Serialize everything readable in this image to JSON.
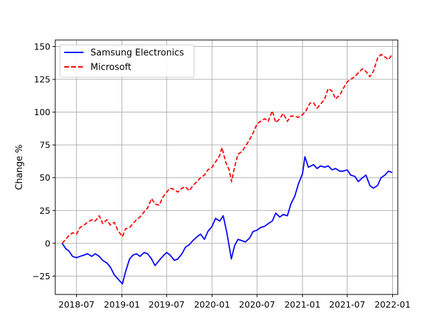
{
  "chart_data": {
    "type": "line",
    "title": "",
    "xlabel": "",
    "ylabel": "Change %",
    "xlim": [
      "2018-04-06",
      "2022-01-22"
    ],
    "ylim": [
      -39,
      155
    ],
    "x_ticks": [
      "2018-07",
      "2019-01",
      "2019-07",
      "2020-01",
      "2020-07",
      "2021-01",
      "2021-07",
      "2022-01"
    ],
    "y_ticks": [
      -25,
      0,
      25,
      50,
      75,
      100,
      125,
      150
    ],
    "grid": true,
    "legend": {
      "placement": "top-left"
    },
    "series": [
      {
        "name": "Samsung Electronics",
        "color": "#0000ff",
        "style": "solid",
        "points": [
          [
            "2018-05-04",
            0
          ],
          [
            "2018-05-18",
            -4
          ],
          [
            "2018-06-01",
            -6
          ],
          [
            "2018-06-15",
            -10
          ],
          [
            "2018-07-01",
            -11
          ],
          [
            "2018-07-15",
            -10
          ],
          [
            "2018-08-01",
            -9
          ],
          [
            "2018-08-15",
            -8
          ],
          [
            "2018-09-01",
            -10
          ],
          [
            "2018-09-15",
            -8
          ],
          [
            "2018-10-01",
            -10
          ],
          [
            "2018-10-15",
            -13
          ],
          [
            "2018-11-01",
            -15
          ],
          [
            "2018-11-15",
            -18
          ],
          [
            "2018-12-01",
            -24
          ],
          [
            "2018-12-15",
            -27
          ],
          [
            "2019-01-03",
            -31
          ],
          [
            "2019-01-15",
            -22
          ],
          [
            "2019-02-01",
            -12
          ],
          [
            "2019-02-15",
            -9
          ],
          [
            "2019-03-01",
            -8
          ],
          [
            "2019-03-15",
            -10
          ],
          [
            "2019-04-01",
            -7
          ],
          [
            "2019-04-15",
            -8
          ],
          [
            "2019-05-01",
            -12
          ],
          [
            "2019-05-15",
            -17
          ],
          [
            "2019-06-01",
            -13
          ],
          [
            "2019-06-15",
            -10
          ],
          [
            "2019-07-01",
            -7
          ],
          [
            "2019-07-15",
            -9
          ],
          [
            "2019-08-01",
            -13
          ],
          [
            "2019-08-15",
            -12
          ],
          [
            "2019-09-01",
            -8
          ],
          [
            "2019-09-15",
            -3
          ],
          [
            "2019-10-01",
            -1
          ],
          [
            "2019-10-15",
            2
          ],
          [
            "2019-11-01",
            5
          ],
          [
            "2019-11-15",
            7
          ],
          [
            "2019-12-01",
            3
          ],
          [
            "2019-12-15",
            9
          ],
          [
            "2020-01-01",
            13
          ],
          [
            "2020-01-15",
            19
          ],
          [
            "2020-02-01",
            17
          ],
          [
            "2020-02-15",
            21
          ],
          [
            "2020-03-01",
            8
          ],
          [
            "2020-03-10",
            -2
          ],
          [
            "2020-03-19",
            -12
          ],
          [
            "2020-04-01",
            -2
          ],
          [
            "2020-04-15",
            3
          ],
          [
            "2020-05-01",
            2
          ],
          [
            "2020-05-15",
            1
          ],
          [
            "2020-06-01",
            4
          ],
          [
            "2020-06-15",
            9
          ],
          [
            "2020-07-01",
            10
          ],
          [
            "2020-07-15",
            12
          ],
          [
            "2020-08-01",
            13
          ],
          [
            "2020-08-15",
            15
          ],
          [
            "2020-09-01",
            17
          ],
          [
            "2020-09-15",
            23
          ],
          [
            "2020-10-01",
            20
          ],
          [
            "2020-10-15",
            22
          ],
          [
            "2020-11-01",
            21
          ],
          [
            "2020-11-15",
            30
          ],
          [
            "2020-12-01",
            36
          ],
          [
            "2020-12-15",
            45
          ],
          [
            "2021-01-01",
            53
          ],
          [
            "2021-01-11",
            66
          ],
          [
            "2021-01-25",
            58
          ],
          [
            "2021-02-15",
            60
          ],
          [
            "2021-03-01",
            57
          ],
          [
            "2021-03-15",
            59
          ],
          [
            "2021-04-01",
            58
          ],
          [
            "2021-04-15",
            59
          ],
          [
            "2021-05-01",
            56
          ],
          [
            "2021-05-15",
            57
          ],
          [
            "2021-06-01",
            55
          ],
          [
            "2021-06-15",
            55
          ],
          [
            "2021-07-01",
            56
          ],
          [
            "2021-07-15",
            52
          ],
          [
            "2021-08-01",
            51
          ],
          [
            "2021-08-15",
            47
          ],
          [
            "2021-09-01",
            50
          ],
          [
            "2021-09-15",
            52
          ],
          [
            "2021-10-01",
            44
          ],
          [
            "2021-10-15",
            42
          ],
          [
            "2021-11-01",
            44
          ],
          [
            "2021-11-15",
            50
          ],
          [
            "2021-12-01",
            52
          ],
          [
            "2021-12-15",
            55
          ],
          [
            "2021-12-30",
            54
          ]
        ]
      },
      {
        "name": "Microsoft",
        "color": "#ff0000",
        "style": "dashed",
        "points": [
          [
            "2018-05-04",
            0
          ],
          [
            "2018-05-18",
            3
          ],
          [
            "2018-06-01",
            6
          ],
          [
            "2018-06-15",
            8
          ],
          [
            "2018-07-01",
            7
          ],
          [
            "2018-07-15",
            12
          ],
          [
            "2018-08-01",
            14
          ],
          [
            "2018-08-15",
            16
          ],
          [
            "2018-09-01",
            18
          ],
          [
            "2018-09-15",
            17
          ],
          [
            "2018-10-01",
            21
          ],
          [
            "2018-10-15",
            15
          ],
          [
            "2018-11-01",
            18
          ],
          [
            "2018-11-15",
            14
          ],
          [
            "2018-12-01",
            16
          ],
          [
            "2018-12-15",
            10
          ],
          [
            "2019-01-03",
            5
          ],
          [
            "2019-01-15",
            11
          ],
          [
            "2019-02-01",
            12
          ],
          [
            "2019-02-15",
            15
          ],
          [
            "2019-03-01",
            18
          ],
          [
            "2019-03-15",
            20
          ],
          [
            "2019-04-01",
            24
          ],
          [
            "2019-04-15",
            27
          ],
          [
            "2019-05-01",
            34
          ],
          [
            "2019-05-15",
            30
          ],
          [
            "2019-06-01",
            29
          ],
          [
            "2019-06-15",
            35
          ],
          [
            "2019-07-01",
            39
          ],
          [
            "2019-07-15",
            42
          ],
          [
            "2019-08-01",
            41
          ],
          [
            "2019-08-15",
            39
          ],
          [
            "2019-09-01",
            42
          ],
          [
            "2019-09-15",
            43
          ],
          [
            "2019-10-01",
            40
          ],
          [
            "2019-10-15",
            44
          ],
          [
            "2019-11-01",
            47
          ],
          [
            "2019-11-15",
            50
          ],
          [
            "2019-12-01",
            52
          ],
          [
            "2019-12-15",
            56
          ],
          [
            "2020-01-01",
            58
          ],
          [
            "2020-01-15",
            62
          ],
          [
            "2020-02-01",
            67
          ],
          [
            "2020-02-10",
            73
          ],
          [
            "2020-02-25",
            62
          ],
          [
            "2020-03-10",
            56
          ],
          [
            "2020-03-20",
            47
          ],
          [
            "2020-04-01",
            58
          ],
          [
            "2020-04-15",
            68
          ],
          [
            "2020-05-01",
            70
          ],
          [
            "2020-05-15",
            74
          ],
          [
            "2020-06-01",
            79
          ],
          [
            "2020-06-15",
            84
          ],
          [
            "2020-07-01",
            91
          ],
          [
            "2020-07-15",
            93
          ],
          [
            "2020-08-01",
            95
          ],
          [
            "2020-08-15",
            93
          ],
          [
            "2020-09-01",
            101
          ],
          [
            "2020-09-15",
            92
          ],
          [
            "2020-10-01",
            95
          ],
          [
            "2020-10-15",
            99
          ],
          [
            "2020-11-01",
            93
          ],
          [
            "2020-11-15",
            97
          ],
          [
            "2020-12-01",
            97
          ],
          [
            "2020-12-15",
            96
          ],
          [
            "2021-01-01",
            98
          ],
          [
            "2021-01-15",
            101
          ],
          [
            "2021-02-01",
            107
          ],
          [
            "2021-02-15",
            107
          ],
          [
            "2021-03-01",
            103
          ],
          [
            "2021-03-15",
            106
          ],
          [
            "2021-04-01",
            110
          ],
          [
            "2021-04-15",
            118
          ],
          [
            "2021-05-01",
            116
          ],
          [
            "2021-05-15",
            110
          ],
          [
            "2021-06-01",
            113
          ],
          [
            "2021-06-15",
            118
          ],
          [
            "2021-07-01",
            123
          ],
          [
            "2021-07-15",
            125
          ],
          [
            "2021-08-01",
            127
          ],
          [
            "2021-08-15",
            130
          ],
          [
            "2021-09-01",
            133
          ],
          [
            "2021-09-15",
            131
          ],
          [
            "2021-10-01",
            127
          ],
          [
            "2021-10-15",
            131
          ],
          [
            "2021-11-01",
            141
          ],
          [
            "2021-11-15",
            144
          ],
          [
            "2021-12-01",
            142
          ],
          [
            "2021-12-15",
            140
          ],
          [
            "2021-12-30",
            144
          ]
        ]
      }
    ]
  }
}
